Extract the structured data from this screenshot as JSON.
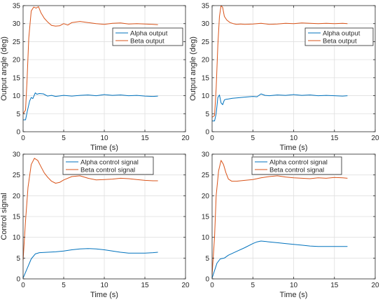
{
  "figure": {
    "colors": {
      "series1": "#0072BD",
      "series2": "#D95319",
      "axis": "#262626",
      "grid": "#dfdfdf"
    }
  },
  "chart_data": [
    {
      "type": "line",
      "title": "",
      "xlabel": "Time (s)",
      "ylabel": "Output angle (deg)",
      "xlim": [
        0,
        20
      ],
      "ylim": [
        0,
        35
      ],
      "xticks": [
        0,
        5,
        10,
        15,
        20
      ],
      "yticks": [
        0,
        5,
        10,
        15,
        20,
        25,
        30,
        35
      ],
      "grid": true,
      "legend_position": "upper-right",
      "series": [
        {
          "name": "Alpha output",
          "color": "#0072BD",
          "x": [
            0,
            0.3,
            0.5,
            0.8,
            1.0,
            1.2,
            1.5,
            1.7,
            2.0,
            2.5,
            3.0,
            3.5,
            4.0,
            5.0,
            6.0,
            7.0,
            8.0,
            9.0,
            10.0,
            11.0,
            12.0,
            13.0,
            14.0,
            15.0,
            16.0,
            16.6
          ],
          "y": [
            3.3,
            3.3,
            5.5,
            8.5,
            9.5,
            9.2,
            10.8,
            10.4,
            10.6,
            10.5,
            9.9,
            10.1,
            9.8,
            10.1,
            9.9,
            10.1,
            10.2,
            10.0,
            10.3,
            10.1,
            10.2,
            10.0,
            10.1,
            9.9,
            9.8,
            9.9
          ]
        },
        {
          "name": "Beta output",
          "color": "#D95319",
          "x": [
            0,
            0.3,
            0.5,
            0.7,
            1.0,
            1.3,
            1.6,
            1.9,
            2.2,
            2.6,
            3.0,
            3.5,
            4.0,
            4.5,
            5.0,
            5.5,
            6.0,
            7.0,
            8.0,
            9.0,
            10.0,
            11.0,
            12.0,
            13.0,
            14.0,
            15.0,
            16.0,
            16.6
          ],
          "y": [
            5.0,
            6.0,
            15.0,
            26.0,
            33.5,
            34.6,
            34.3,
            34.7,
            33.0,
            31.5,
            30.5,
            29.5,
            29.3,
            29.4,
            30.0,
            29.6,
            30.3,
            30.6,
            30.3,
            30.0,
            29.8,
            30.1,
            30.2,
            29.9,
            30.0,
            29.9,
            29.8,
            29.7
          ]
        }
      ]
    },
    {
      "type": "line",
      "title": "",
      "xlabel": "Time (s)",
      "ylabel": "Output angle (deg)",
      "xlim": [
        0,
        20
      ],
      "ylim": [
        0,
        35
      ],
      "xticks": [
        0,
        5,
        10,
        15,
        20
      ],
      "yticks": [
        0,
        5,
        10,
        15,
        20,
        25,
        30,
        35
      ],
      "grid": true,
      "legend_position": "upper-right",
      "series": [
        {
          "name": "Alpha output",
          "color": "#0072BD",
          "x": [
            0,
            0.3,
            0.5,
            0.7,
            0.9,
            1.1,
            1.3,
            1.5,
            1.7,
            2.0,
            2.5,
            3.0,
            4.0,
            5.0,
            5.5,
            6.0,
            6.5,
            7.0,
            8.0,
            9.0,
            10.0,
            11.0,
            12.0,
            13.0,
            14.0,
            15.0,
            16.0,
            16.6
          ],
          "y": [
            3.0,
            3.0,
            5.0,
            9.5,
            10.2,
            8.0,
            7.5,
            8.8,
            9.0,
            9.1,
            9.3,
            9.4,
            9.6,
            9.8,
            9.7,
            10.5,
            10.1,
            10.0,
            10.2,
            10.1,
            10.3,
            10.1,
            10.2,
            10.0,
            10.1,
            10.0,
            9.9,
            10.0
          ]
        },
        {
          "name": "Beta output",
          "color": "#D95319",
          "x": [
            0,
            0.3,
            0.5,
            0.7,
            0.9,
            1.1,
            1.3,
            1.5,
            1.8,
            2.2,
            2.6,
            3.0,
            3.5,
            4.0,
            5.0,
            6.0,
            7.0,
            8.0,
            9.0,
            10.0,
            11.0,
            12.0,
            13.0,
            14.0,
            15.0,
            16.0,
            16.6
          ],
          "y": [
            4.0,
            4.5,
            12.0,
            24.0,
            32.0,
            35.0,
            34.5,
            32.0,
            31.0,
            30.3,
            30.0,
            29.8,
            29.9,
            29.8,
            29.9,
            30.1,
            29.8,
            29.9,
            30.1,
            30.0,
            30.2,
            30.1,
            30.0,
            30.1,
            30.0,
            30.1,
            30.0
          ]
        }
      ]
    },
    {
      "type": "line",
      "title": "",
      "xlabel": "Time (s)",
      "ylabel": "Control signal",
      "xlim": [
        0,
        20
      ],
      "ylim": [
        0,
        30
      ],
      "xticks": [
        0,
        5,
        10,
        15,
        20
      ],
      "yticks": [
        0,
        5,
        10,
        15,
        20,
        25,
        30
      ],
      "grid": true,
      "legend_position": "upper-center",
      "series": [
        {
          "name": "Alpha control signal",
          "color": "#0072BD",
          "x": [
            0,
            0.5,
            1.0,
            1.5,
            2.0,
            3.0,
            4.0,
            5.0,
            6.0,
            7.0,
            8.0,
            9.0,
            10.0,
            11.0,
            12.0,
            13.0,
            14.0,
            15.0,
            16.0,
            16.6
          ],
          "y": [
            0.2,
            2.5,
            4.8,
            6.0,
            6.3,
            6.4,
            6.5,
            6.7,
            7.0,
            7.2,
            7.3,
            7.2,
            7.0,
            6.7,
            6.4,
            6.2,
            6.2,
            6.2,
            6.3,
            6.4
          ]
        },
        {
          "name": "Beta control signal",
          "color": "#D95319",
          "x": [
            0,
            0.3,
            0.6,
            1.0,
            1.4,
            1.8,
            2.2,
            2.6,
            3.0,
            3.5,
            4.0,
            4.5,
            5.0,
            6.0,
            7.0,
            8.0,
            9.0,
            10.0,
            11.0,
            12.0,
            13.0,
            14.0,
            15.0,
            16.0,
            16.6
          ],
          "y": [
            4.5,
            14.0,
            22.0,
            27.5,
            29.0,
            28.5,
            27.0,
            25.5,
            24.5,
            23.5,
            23.0,
            23.2,
            23.8,
            24.6,
            24.8,
            24.2,
            23.8,
            23.9,
            24.0,
            24.2,
            24.1,
            23.9,
            23.7,
            23.6,
            23.6
          ]
        }
      ]
    },
    {
      "type": "line",
      "title": "",
      "xlabel": "Time (s)",
      "ylabel": "",
      "xlim": [
        0,
        20
      ],
      "ylim": [
        0,
        30
      ],
      "xticks": [
        0,
        5,
        10,
        15,
        20
      ],
      "yticks": [
        0,
        5,
        10,
        15,
        20,
        25,
        30
      ],
      "grid": true,
      "legend_position": "upper-center",
      "series": [
        {
          "name": "Alpha control signal",
          "color": "#0072BD",
          "x": [
            0,
            0.3,
            0.6,
            1.0,
            1.5,
            2.0,
            3.0,
            4.0,
            5.0,
            5.5,
            6.0,
            7.0,
            8.0,
            9.0,
            10.0,
            11.0,
            12.0,
            13.0,
            14.0,
            15.0,
            16.0,
            16.6
          ],
          "y": [
            0.2,
            2.0,
            3.8,
            4.8,
            5.0,
            5.7,
            6.6,
            7.5,
            8.5,
            8.9,
            9.1,
            8.9,
            8.7,
            8.5,
            8.3,
            8.1,
            7.9,
            7.8,
            7.8,
            7.8,
            7.8,
            7.8
          ]
        },
        {
          "name": "Beta control signal",
          "color": "#D95319",
          "x": [
            0,
            0.3,
            0.5,
            0.8,
            1.1,
            1.4,
            1.7,
            2.0,
            2.4,
            3.0,
            4.0,
            5.0,
            6.0,
            7.0,
            8.0,
            9.0,
            10.0,
            11.0,
            12.0,
            13.0,
            14.0,
            15.0,
            16.0,
            16.6
          ],
          "y": [
            1.0,
            10.0,
            20.0,
            26.0,
            28.5,
            27.5,
            25.5,
            24.0,
            23.5,
            23.5,
            23.7,
            23.9,
            24.3,
            24.6,
            24.8,
            24.5,
            24.3,
            24.2,
            24.1,
            24.3,
            24.2,
            24.4,
            24.3,
            24.2
          ]
        }
      ]
    }
  ]
}
